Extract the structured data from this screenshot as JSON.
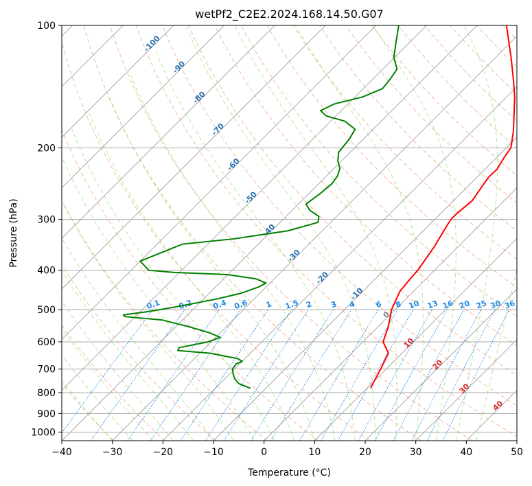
{
  "chart_data": {
    "type": "line",
    "subtype": "skew-t log-p diagram",
    "title": "wetPf2_C2E2.2024.168.14.50.G07",
    "xlabel": "Temperature (°C)",
    "ylabel": "Pressure (hPa)",
    "xlim": [
      -40,
      50
    ],
    "ylim": [
      1050,
      100
    ],
    "y_scale": "log",
    "grid": true,
    "x_ticks": [
      -40,
      -30,
      -20,
      -10,
      0,
      10,
      20,
      30,
      40,
      50
    ],
    "x_tick_labels": [
      "−40",
      "−30",
      "−20",
      "−10",
      "0",
      "10",
      "20",
      "30",
      "40",
      "50"
    ],
    "y_ticks": [
      100,
      200,
      300,
      400,
      500,
      600,
      700,
      800,
      900,
      1000
    ],
    "y_tick_labels": [
      "100",
      "200",
      "300",
      "400",
      "500",
      "600",
      "700",
      "800",
      "900",
      "1000"
    ],
    "series": [
      {
        "color": "#ff0000",
        "points": [
          [
            10.7,
            780
          ],
          [
            9.8,
            740
          ],
          [
            8.9,
            700
          ],
          [
            7.3,
            640
          ],
          [
            4.0,
            600
          ],
          [
            2.0,
            550
          ],
          [
            -0.7,
            500
          ],
          [
            -2.7,
            450
          ],
          [
            -3.1,
            420
          ],
          [
            -3.3,
            400
          ],
          [
            -4.7,
            350
          ],
          [
            -6.4,
            310
          ],
          [
            -6.8,
            300
          ],
          [
            -6.8,
            290
          ],
          [
            -6.3,
            270
          ],
          [
            -6.7,
            260
          ],
          [
            -6.9,
            255
          ],
          [
            -7.3,
            246
          ],
          [
            -7.7,
            236
          ],
          [
            -7.6,
            226
          ],
          [
            -8.6,
            210
          ],
          [
            -9.1,
            200
          ],
          [
            -11.9,
            182
          ],
          [
            -15.2,
            165
          ],
          [
            -18.4,
            150
          ],
          [
            -21.8,
            137
          ],
          [
            -26.9,
            120
          ],
          [
            -34.2,
            100
          ]
        ]
      },
      {
        "color": "#008000",
        "points": [
          [
            -13.1,
            780
          ],
          [
            -16.3,
            760
          ],
          [
            -18.0,
            740
          ],
          [
            -19.3,
            720
          ],
          [
            -20.4,
            700
          ],
          [
            -20.7,
            680
          ],
          [
            -20.0,
            670
          ],
          [
            -21.4,
            660
          ],
          [
            -27.9,
            640
          ],
          [
            -34.9,
            630
          ],
          [
            -35.2,
            620
          ],
          [
            -30.6,
            600
          ],
          [
            -29.1,
            585
          ],
          [
            -32.1,
            570
          ],
          [
            -37.6,
            550
          ],
          [
            -44.1,
            530
          ],
          [
            -52.1,
            520
          ],
          [
            -52.7,
            515
          ],
          [
            -48.2,
            505
          ],
          [
            -43.2,
            490
          ],
          [
            -37.2,
            470
          ],
          [
            -33.6,
            455
          ],
          [
            -31.5,
            440
          ],
          [
            -30.8,
            430
          ],
          [
            -33.6,
            420
          ],
          [
            -40.1,
            410
          ],
          [
            -51.1,
            405
          ],
          [
            -56.5,
            400
          ],
          [
            -60.0,
            380
          ],
          [
            -55.0,
            345
          ],
          [
            -46.0,
            335
          ],
          [
            -36.8,
            320
          ],
          [
            -32.5,
            305
          ],
          [
            -33.5,
            295
          ],
          [
            -36.5,
            285
          ],
          [
            -38.5,
            275
          ],
          [
            -37.8,
            260
          ],
          [
            -37.4,
            245
          ],
          [
            -37.8,
            235
          ],
          [
            -38.8,
            225
          ],
          [
            -40.8,
            215
          ],
          [
            -42.3,
            205
          ],
          [
            -42.8,
            190
          ],
          [
            -43.6,
            180
          ],
          [
            -47.2,
            172
          ],
          [
            -51.9,
            167
          ],
          [
            -54.1,
            162
          ],
          [
            -52.7,
            156
          ],
          [
            -48.5,
            150
          ],
          [
            -46.2,
            143
          ],
          [
            -46.6,
            135
          ],
          [
            -47.2,
            128
          ],
          [
            -50.1,
            120
          ],
          [
            -52.7,
            110
          ],
          [
            -55.5,
            100
          ]
        ]
      }
    ],
    "mixing_ratio_labels": [
      "0.1",
      "0.2",
      "0.4",
      "0.6",
      "1",
      "1.5",
      "2",
      "3",
      "4",
      "6",
      "8",
      "10",
      "13",
      "16",
      "20",
      "25",
      "30",
      "36"
    ],
    "mixing_ratio_values": [
      0.1,
      0.2,
      0.4,
      0.6,
      1,
      1.5,
      2,
      3,
      4,
      6,
      8,
      10,
      13,
      16,
      20,
      25,
      30,
      36
    ],
    "temperature_labels": [
      "-100",
      "-90",
      "-80",
      "-70",
      "-60",
      "-50",
      "-40",
      "-30",
      "-20",
      "-10"
    ],
    "temperature_label_values": [
      -100,
      -90,
      -80,
      -70,
      -60,
      -50,
      -40,
      -30,
      -20,
      -10
    ],
    "lower_temperature_labels": [
      "0",
      "10",
      "20",
      "30",
      "40"
    ],
    "lower_temperature_label_values": [
      0,
      10,
      20,
      30,
      40
    ]
  },
  "colors": {
    "temperature_profile": "#ff0000",
    "dewpoint_profile": "#008000",
    "isotherm": "#a9a9a9",
    "dry_adiabat": "#f4a582",
    "moist_adiabat": "#a6d96a",
    "mixing_ratio": "#1e88e5",
    "isotherm_label": "#2a6fb0",
    "warm_isotherm_label": "#d62728",
    "zero_label": "#808080"
  }
}
